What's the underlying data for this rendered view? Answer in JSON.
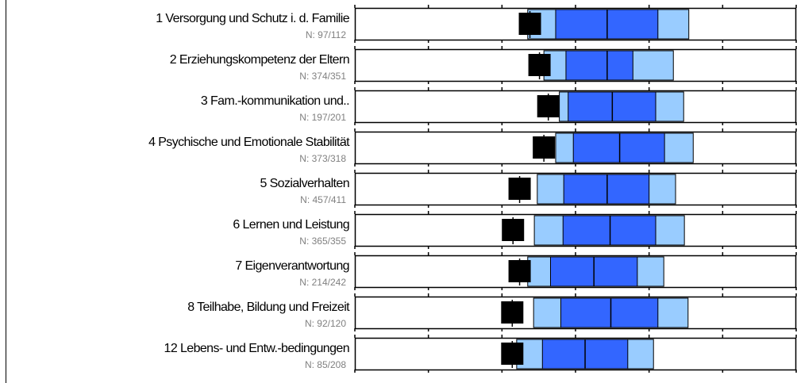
{
  "chart_data": {
    "type": "box",
    "xlim": [
      0,
      6
    ],
    "xticks": [
      0,
      1,
      2,
      3,
      4,
      5,
      6
    ],
    "outer_color": "#99ccff",
    "inner_color": "#3366ff",
    "marker_color": "#000000",
    "rows": [
      {
        "label": "1 Versorgung und Schutz i. d. Familie",
        "n": "N: 97/112",
        "outer": [
          2.35,
          4.54
        ],
        "inner": [
          2.73,
          4.12
        ],
        "median": 3.43,
        "marker": 2.38
      },
      {
        "label": "2 Erziehungskompetenz der Eltern",
        "n": "N: 374/351",
        "outer": [
          2.57,
          4.33
        ],
        "inner": [
          2.87,
          3.78
        ],
        "median": 3.43,
        "marker": 2.51
      },
      {
        "label": "3 Fam.-kommunikation und..",
        "n": "N: 197/201",
        "outer": [
          2.78,
          4.47
        ],
        "inner": [
          2.9,
          4.09
        ],
        "median": 3.5,
        "marker": 2.63
      },
      {
        "label": "4 Psychische und Emotionale Stabilität",
        "n": "N: 373/318",
        "outer": [
          2.73,
          4.6
        ],
        "inner": [
          2.97,
          4.21
        ],
        "median": 3.6,
        "marker": 2.57
      },
      {
        "label": "5 Sozialverhalten",
        "n": "N: 457/411",
        "outer": [
          2.48,
          4.36
        ],
        "inner": [
          2.84,
          4.0
        ],
        "median": 3.43,
        "marker": 2.24
      },
      {
        "label": "6 Lernen und Leistung",
        "n": "N: 365/355",
        "outer": [
          2.44,
          4.48
        ],
        "inner": [
          2.83,
          4.09
        ],
        "median": 3.47,
        "marker": 2.15
      },
      {
        "label": "7 Eigenverantwortung",
        "n": "N: 214/242",
        "outer": [
          2.35,
          4.2
        ],
        "inner": [
          2.66,
          3.84
        ],
        "median": 3.25,
        "marker": 2.24
      },
      {
        "label": "8 Teilhabe, Bildung und Freizeit",
        "n": "N: 92/120",
        "outer": [
          2.43,
          4.53
        ],
        "inner": [
          2.8,
          4.12
        ],
        "median": 3.48,
        "marker": 2.14
      },
      {
        "label": "12 Lebens- und Entw.-bedingungen",
        "n": "N: 85/208",
        "outer": [
          2.2,
          4.06
        ],
        "inner": [
          2.55,
          3.71
        ],
        "median": 3.13,
        "marker": 2.14
      }
    ]
  }
}
